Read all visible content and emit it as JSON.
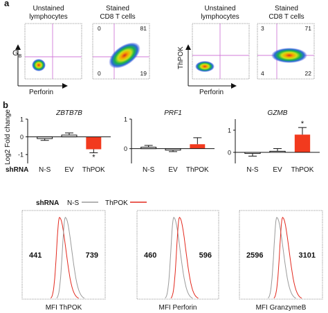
{
  "panel_a": {
    "label": "a",
    "left": {
      "y_axis": "G",
      "y_axis_sub": "B",
      "x_axis": "Perforin",
      "plot1_title": [
        "Unstained",
        "lymphocytes"
      ],
      "plot2_title": [
        "Stained",
        "CD8 T cells"
      ],
      "quadrants": {
        "ul": "0",
        "ur": "81",
        "ll": "0",
        "lr": "19"
      }
    },
    "right": {
      "y_axis": "ThPOK",
      "x_axis": "Perforin",
      "plot1_title": [
        "Unstained",
        "lymphocytes"
      ],
      "plot2_title": [
        "Stained",
        "CD8 T cells"
      ],
      "quadrants": {
        "ul": "3",
        "ur": "71",
        "ll": "4",
        "lr": "22"
      }
    }
  },
  "panel_b": {
    "label": "b",
    "y_axis_label": "Log2 Fold change",
    "shrna_label": "shRNA",
    "colors": {
      "bar": "#f23a1e",
      "line": "#111111"
    }
  },
  "chart_data": [
    {
      "type": "bar",
      "title": "ZBTB7B",
      "categories": [
        "N-S",
        "EV",
        "ThPOK"
      ],
      "values": [
        -0.1,
        0.1,
        -0.7
      ],
      "errors": [
        0.1,
        0.12,
        0.2
      ],
      "significance": [
        "",
        "",
        "*"
      ],
      "ylim": [
        -1.5,
        1
      ],
      "yticks": [
        "1",
        "0",
        "-1"
      ]
    },
    {
      "type": "bar",
      "title": "PRF1",
      "categories": [
        "N-S",
        "EV",
        "ThPOK"
      ],
      "values": [
        0.05,
        -0.05,
        0.15
      ],
      "errors": [
        0.06,
        0.05,
        0.22
      ],
      "significance": [
        "",
        "",
        ""
      ],
      "ylim": [
        -0.5,
        1
      ],
      "yticks": [
        "1",
        "0"
      ]
    },
    {
      "type": "bar",
      "title": "GZMB",
      "categories": [
        "N-S",
        "EV",
        "ThPOK"
      ],
      "values": [
        -0.05,
        0.05,
        0.8
      ],
      "errors": [
        0.12,
        0.12,
        0.32
      ],
      "significance": [
        "",
        "",
        "*"
      ],
      "ylim": [
        -0.5,
        1.5
      ],
      "yticks": [
        "1",
        "0"
      ]
    }
  ],
  "panel_c": {
    "legend": {
      "prefix": "shRNA",
      "ns": "N-S",
      "thpok": "ThPOK"
    },
    "histograms": [
      {
        "xlabel": "MFI ThPOK",
        "left_value": "441",
        "right_value": "739",
        "left_color": "red",
        "right_color": "gray"
      },
      {
        "xlabel": "MFI Perforin",
        "left_value": "460",
        "right_value": "596",
        "left_color": "gray",
        "right_color": "red"
      },
      {
        "xlabel": "MFI GranzymeB",
        "left_value": "2596",
        "right_value": "3101",
        "left_color": "gray",
        "right_color": "red"
      }
    ],
    "colors": {
      "ns": "#9a9a9a",
      "thpok": "#e3281d"
    }
  }
}
